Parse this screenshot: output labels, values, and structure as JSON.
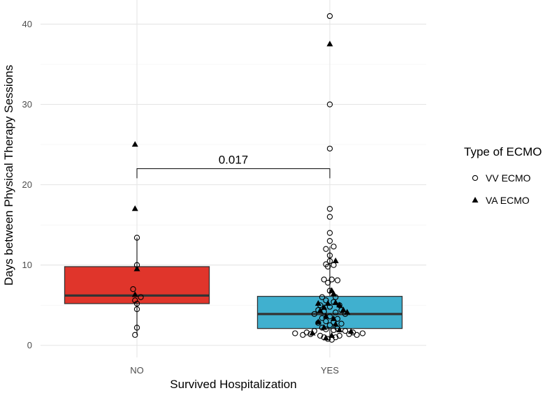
{
  "chart_data": {
    "type": "boxplot",
    "title": "",
    "xlabel": "Survived Hospitalization",
    "ylabel": "Days between Physical Therapy Sessions",
    "categories": [
      "NO",
      "YES"
    ],
    "ylim": [
      -1.5,
      43
    ],
    "yticks": [
      0,
      10,
      20,
      30,
      40
    ],
    "boxes": [
      {
        "category": "NO",
        "color": "#e0352b",
        "q1": 5.2,
        "median": 6.2,
        "q3": 9.8,
        "whisker_low": 1.3,
        "whisker_high": 13.4
      },
      {
        "category": "YES",
        "color": "#40b0cf",
        "q1": 2.1,
        "median": 3.9,
        "q3": 6.1,
        "whisker_low": 0.6,
        "whisker_high": 12.3
      }
    ],
    "legend": {
      "title": "Type of ECMO",
      "position": "right",
      "entries": [
        {
          "label": "VV ECMO",
          "shape": "circle-open"
        },
        {
          "label": "VA ECMO",
          "shape": "triangle-filled"
        }
      ]
    },
    "annotation": {
      "text": "0.017",
      "y": 22,
      "tick_bottom": 20.8
    },
    "points": {
      "NO": {
        "VV ECMO": [
          {
            "jitter": 0,
            "y": 13.4
          },
          {
            "jitter": 0,
            "y": 10.0
          },
          {
            "jitter": -0.02,
            "y": 7.0
          },
          {
            "jitter": 0.02,
            "y": 6.0
          },
          {
            "jitter": -0.01,
            "y": 5.6
          },
          {
            "jitter": 0,
            "y": 5.2
          },
          {
            "jitter": 0,
            "y": 4.5
          },
          {
            "jitter": 0,
            "y": 2.2
          },
          {
            "jitter": -0.01,
            "y": 1.3
          }
        ],
        "VA ECMO": [
          {
            "jitter": -0.01,
            "y": 25.0
          },
          {
            "jitter": -0.01,
            "y": 17.0
          },
          {
            "jitter": 0,
            "y": 9.5
          },
          {
            "jitter": -0.01,
            "y": 6.3
          }
        ]
      },
      "YES": {
        "VV ECMO": [
          {
            "jitter": 0,
            "y": 41.0
          },
          {
            "jitter": 0,
            "y": 30.0
          },
          {
            "jitter": 0,
            "y": 24.5
          },
          {
            "jitter": 0,
            "y": 17.0
          },
          {
            "jitter": 0,
            "y": 16.0
          },
          {
            "jitter": 0,
            "y": 14.0
          },
          {
            "jitter": 0,
            "y": 13.0
          },
          {
            "jitter": 0.02,
            "y": 12.3
          },
          {
            "jitter": -0.02,
            "y": 12.0
          },
          {
            "jitter": 0,
            "y": 11.2
          },
          {
            "jitter": 0,
            "y": 10.5
          },
          {
            "jitter": -0.02,
            "y": 10.1
          },
          {
            "jitter": 0.02,
            "y": 10.0
          },
          {
            "jitter": -0.01,
            "y": 9.8
          },
          {
            "jitter": -0.03,
            "y": 8.2
          },
          {
            "jitter": 0.01,
            "y": 8.2
          },
          {
            "jitter": 0.04,
            "y": 8.1
          },
          {
            "jitter": -0.01,
            "y": 7.8
          },
          {
            "jitter": 0,
            "y": 6.8
          },
          {
            "jitter": -0.04,
            "y": 6.0
          },
          {
            "jitter": 0.03,
            "y": 6.0
          },
          {
            "jitter": -0.02,
            "y": 5.6
          },
          {
            "jitter": 0.02,
            "y": 5.4
          },
          {
            "jitter": -0.05,
            "y": 5.0
          },
          {
            "jitter": 0.05,
            "y": 5.0
          },
          {
            "jitter": 0,
            "y": 4.8
          },
          {
            "jitter": -0.06,
            "y": 4.4
          },
          {
            "jitter": 0.06,
            "y": 4.4
          },
          {
            "jitter": -0.03,
            "y": 4.2
          },
          {
            "jitter": 0.03,
            "y": 4.1
          },
          {
            "jitter": -0.08,
            "y": 3.9
          },
          {
            "jitter": 0.08,
            "y": 3.9
          },
          {
            "jitter": 0,
            "y": 3.6
          },
          {
            "jitter": -0.04,
            "y": 3.4
          },
          {
            "jitter": 0.04,
            "y": 3.3
          },
          {
            "jitter": -0.02,
            "y": 3.0
          },
          {
            "jitter": 0.02,
            "y": 2.9
          },
          {
            "jitter": -0.06,
            "y": 2.8
          },
          {
            "jitter": 0.06,
            "y": 2.7
          },
          {
            "jitter": 0,
            "y": 2.5
          },
          {
            "jitter": -0.04,
            "y": 2.2
          },
          {
            "jitter": 0.04,
            "y": 2.1
          },
          {
            "jitter": -0.02,
            "y": 2.0
          },
          {
            "jitter": 0.02,
            "y": 1.9
          },
          {
            "jitter": -0.08,
            "y": 1.8
          },
          {
            "jitter": 0.08,
            "y": 1.8
          },
          {
            "jitter": -0.12,
            "y": 1.6
          },
          {
            "jitter": 0.12,
            "y": 1.6
          },
          {
            "jitter": -0.18,
            "y": 1.5
          },
          {
            "jitter": 0.17,
            "y": 1.5
          },
          {
            "jitter": -0.1,
            "y": 1.4
          },
          {
            "jitter": 0.1,
            "y": 1.4
          },
          {
            "jitter": -0.14,
            "y": 1.3
          },
          {
            "jitter": 0.14,
            "y": 1.3
          },
          {
            "jitter": -0.05,
            "y": 1.2
          },
          {
            "jitter": 0.05,
            "y": 1.2
          },
          {
            "jitter": -0.03,
            "y": 1.0
          },
          {
            "jitter": 0.03,
            "y": 1.0
          },
          {
            "jitter": -0.01,
            "y": 0.8
          },
          {
            "jitter": 0.01,
            "y": 0.7
          }
        ],
        "VA ECMO": [
          {
            "jitter": 0,
            "y": 37.5
          },
          {
            "jitter": 0.03,
            "y": 10.5
          },
          {
            "jitter": 0.01,
            "y": 6.8
          },
          {
            "jitter": 0.02,
            "y": 6.4
          },
          {
            "jitter": 0.03,
            "y": 5.3
          },
          {
            "jitter": -0.06,
            "y": 5.2
          },
          {
            "jitter": -0.01,
            "y": 5.2
          },
          {
            "jitter": 0.05,
            "y": 5.0
          },
          {
            "jitter": -0.03,
            "y": 4.7
          },
          {
            "jitter": 0.07,
            "y": 4.4
          },
          {
            "jitter": -0.05,
            "y": 4.3
          },
          {
            "jitter": 0.09,
            "y": 4.1
          },
          {
            "jitter": -0.02,
            "y": 3.6
          },
          {
            "jitter": 0.02,
            "y": 3.3
          },
          {
            "jitter": -0.06,
            "y": 2.9
          },
          {
            "jitter": 0.03,
            "y": 2.6
          },
          {
            "jitter": -0.03,
            "y": 2.2
          },
          {
            "jitter": 0.05,
            "y": 1.9
          },
          {
            "jitter": 0.11,
            "y": 1.7
          },
          {
            "jitter": -0.09,
            "y": 1.5
          },
          {
            "jitter": 0.01,
            "y": 1.2
          },
          {
            "jitter": -0.02,
            "y": 0.9
          }
        ]
      }
    }
  }
}
